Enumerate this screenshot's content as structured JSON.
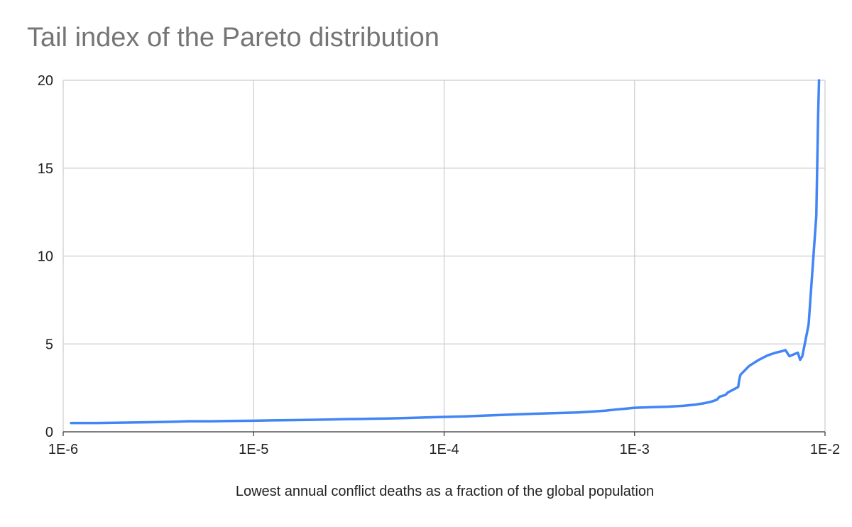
{
  "chart_data": {
    "type": "line",
    "title": "Tail index of the Pareto distribution",
    "xlabel": "Lowest annual conflict deaths as a fraction of the global population",
    "ylabel": "",
    "x_scale": "log",
    "xlim": [
      1e-06,
      0.01
    ],
    "ylim": [
      0,
      20
    ],
    "x_ticks": [
      1e-06,
      1e-05,
      0.0001,
      0.001,
      0.01
    ],
    "x_tick_labels": [
      "1E-6",
      "1E-5",
      "1E-4",
      "1E-3",
      "1E-2"
    ],
    "y_ticks": [
      0,
      5,
      10,
      15,
      20
    ],
    "y_tick_labels": [
      "0",
      "5",
      "10",
      "15",
      "20"
    ],
    "grid": true,
    "legend": "none",
    "line_color": "#4285f4",
    "series": [
      {
        "x": [
          1.1e-06,
          1.5e-06,
          2e-06,
          3e-06,
          4e-06,
          4.5e-06,
          6e-06,
          8e-06,
          1e-05,
          1.25e-05,
          1.5e-05,
          2e-05,
          2.5e-05,
          3e-05,
          4e-05,
          5e-05,
          6e-05,
          8e-05,
          0.0001,
          0.00013,
          0.00016,
          0.0002,
          0.00025,
          0.0003,
          0.0004,
          0.0005,
          0.0006,
          0.0007,
          0.0008,
          0.0009,
          0.001,
          0.0012,
          0.0015,
          0.0018,
          0.0021,
          0.0023,
          0.0025,
          0.0027,
          0.0028,
          0.003,
          0.0031,
          0.0033,
          0.0035,
          0.00355,
          0.0036,
          0.004,
          0.0045,
          0.005,
          0.0055,
          0.006,
          0.0062,
          0.0065,
          0.007,
          0.0072,
          0.0074,
          0.0076,
          0.0082,
          0.009,
          0.0092,
          0.0093
        ],
        "y": [
          0.5,
          0.5,
          0.52,
          0.55,
          0.58,
          0.6,
          0.6,
          0.62,
          0.63,
          0.65,
          0.66,
          0.68,
          0.7,
          0.72,
          0.74,
          0.76,
          0.78,
          0.82,
          0.85,
          0.88,
          0.92,
          0.96,
          1.0,
          1.03,
          1.07,
          1.1,
          1.15,
          1.2,
          1.27,
          1.32,
          1.37,
          1.4,
          1.43,
          1.48,
          1.55,
          1.62,
          1.7,
          1.82,
          2.0,
          2.1,
          2.25,
          2.4,
          2.55,
          3.0,
          3.25,
          3.75,
          4.1,
          4.35,
          4.5,
          4.6,
          4.65,
          4.3,
          4.45,
          4.5,
          4.1,
          4.3,
          6.1,
          12.3,
          18.0,
          20.0
        ]
      }
    ]
  }
}
